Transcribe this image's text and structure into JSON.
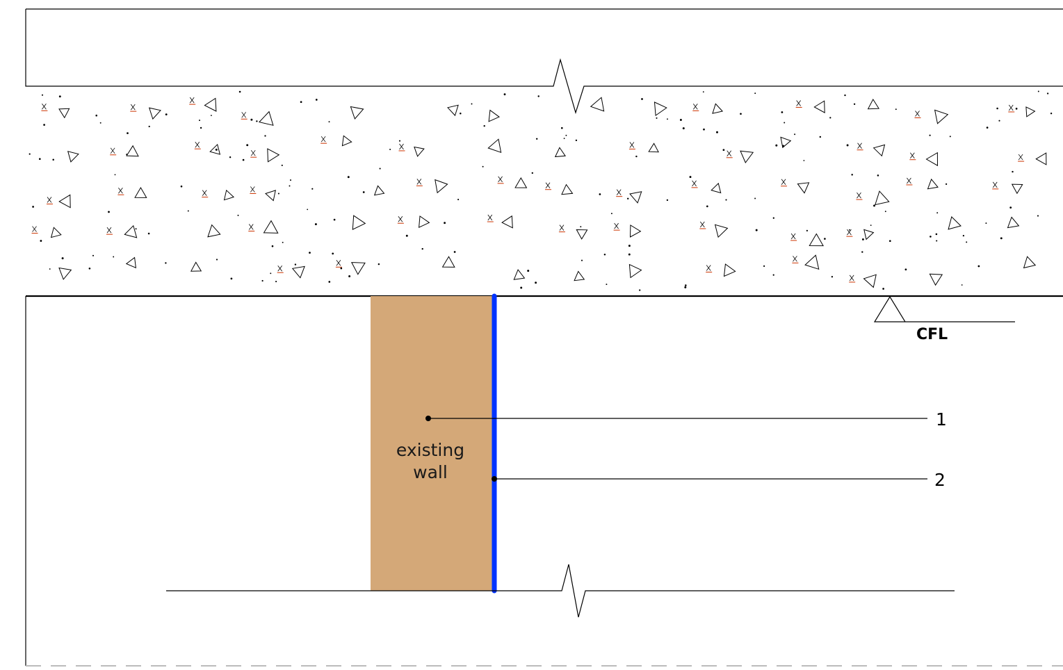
{
  "drawing": {
    "level_marker": {
      "label": "CFL"
    },
    "wall": {
      "label_line1": "existing",
      "label_line2": "wall",
      "fill_color": "#D4A878"
    },
    "membrane": {
      "color": "#0033FF"
    },
    "callouts": [
      {
        "number": "1"
      },
      {
        "number": "2"
      }
    ],
    "hatch": {
      "pattern": "concrete",
      "accent_color": "#CC3300"
    }
  }
}
